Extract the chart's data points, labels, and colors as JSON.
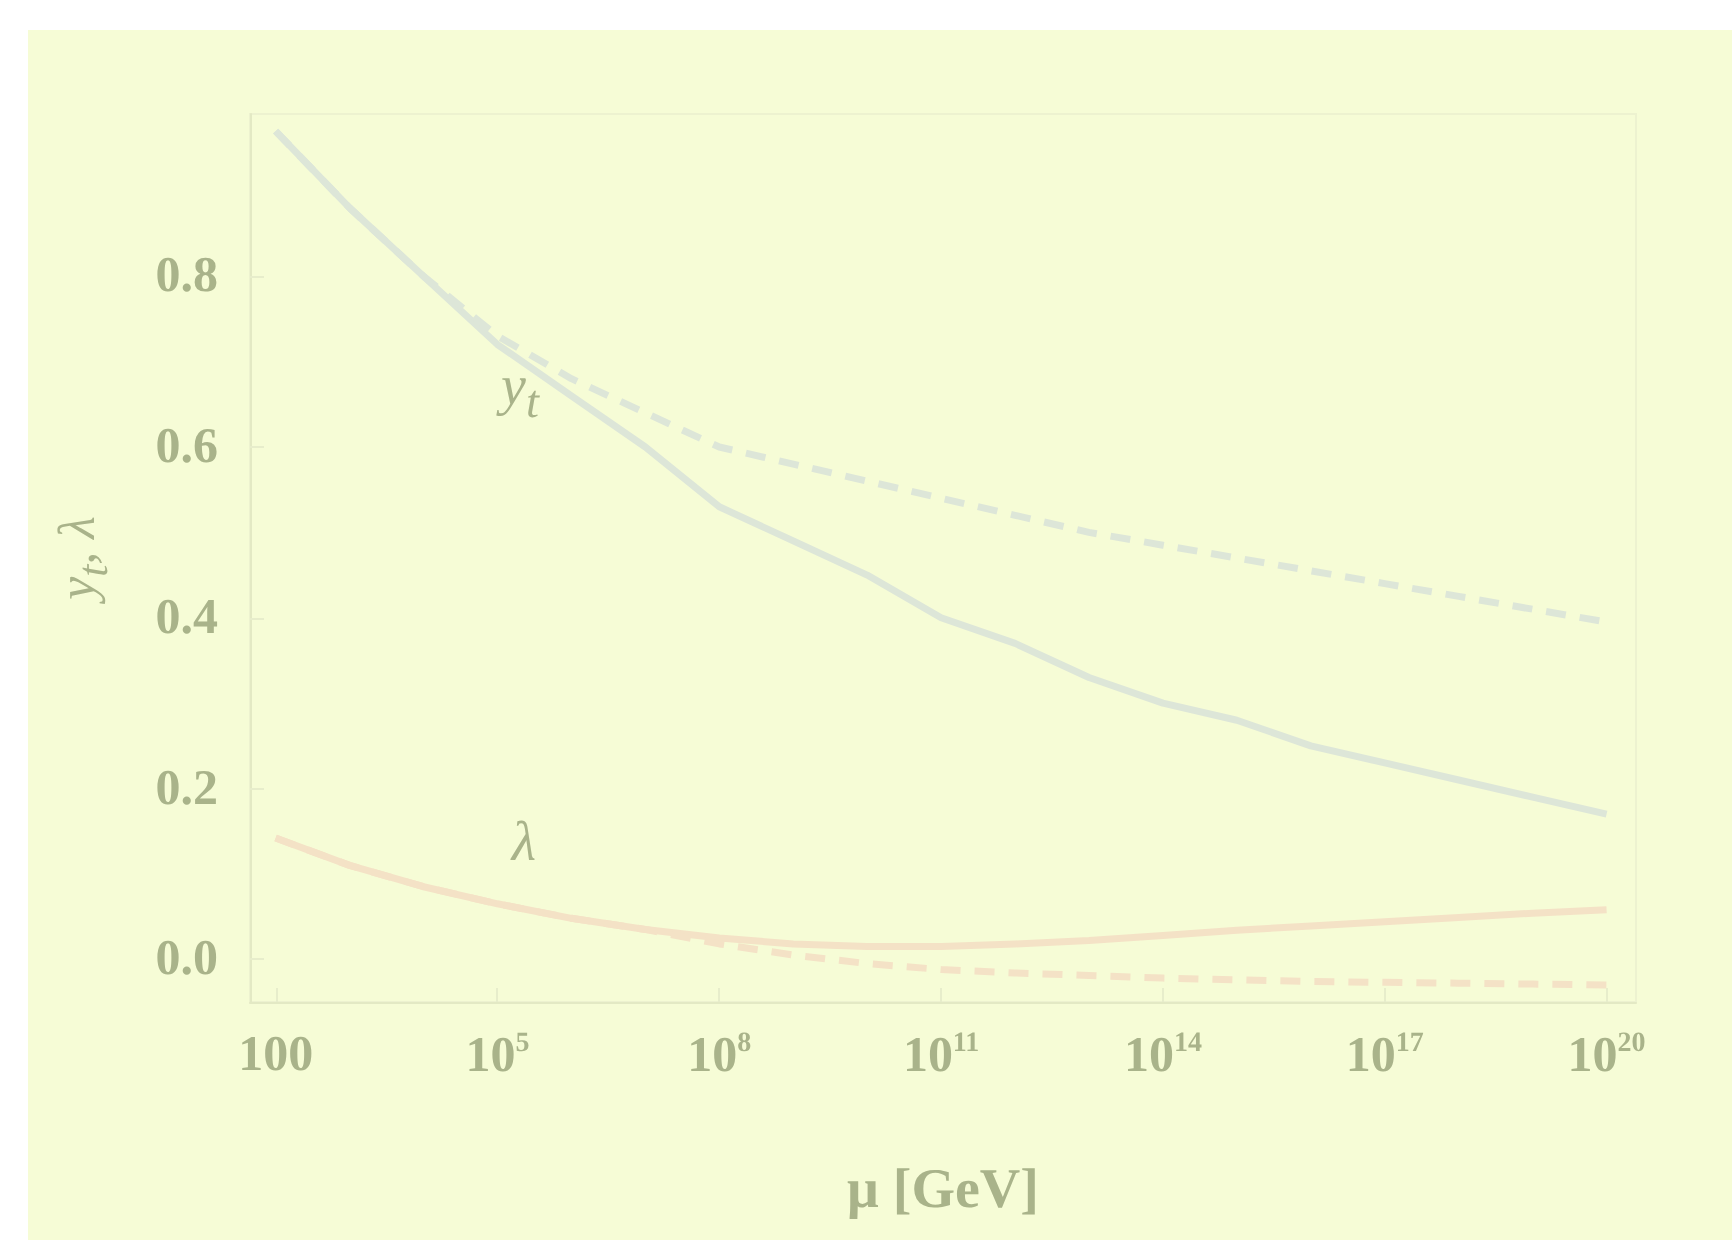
{
  "chart_data": {
    "type": "line",
    "xlabel": "μ [GeV]",
    "ylabel": "y$_{t}$, λ",
    "log": "x",
    "xlim": [
      45,
      2.5e+20
    ],
    "ylim": [
      -0.05,
      0.99
    ],
    "xticks": [
      100,
      {
        "value": 100000.0,
        "label": "10$^{5}$"
      },
      {
        "value": 100000000.0,
        "label": "10$^{8}$"
      },
      {
        "value": 100000000000.0,
        "label": "10$^{11}$"
      },
      {
        "value": 100000000000000.0,
        "label": "10$^{14}$"
      },
      {
        "value": 1e+17,
        "label": "10$^{17}$"
      },
      {
        "value": 1e+20,
        "label": "10$^{20}$"
      }
    ],
    "yticks": [
      {
        "value": 0,
        "label": "0.0"
      },
      0.2,
      0.4,
      0.6,
      0.8
    ],
    "x": [
      100,
      1000.0,
      10000.0,
      100000.0,
      1000000.0,
      10000000.0,
      100000000.0,
      1000000000.0,
      10000000000.0,
      100000000000.0,
      1000000000000.0,
      10000000000000.0,
      100000000000000.0,
      1000000000000000.0,
      1e+16,
      1e+17,
      1e+18,
      1e+19,
      1e+20
    ],
    "series": [
      {
        "color": "#dde6d8",
        "line_style": "solid",
        "values": [
          0.97,
          0.88,
          0.8,
          0.72,
          0.66,
          0.6,
          0.53,
          0.49,
          0.45,
          0.4,
          0.37,
          0.33,
          0.3,
          0.28,
          0.25,
          0.23,
          0.21,
          0.19,
          0.17
        ]
      },
      {
        "color": "#dde6d8",
        "line_style": "dashed",
        "values": [
          0.97,
          0.88,
          0.8,
          0.73,
          0.68,
          0.64,
          0.6,
          0.58,
          0.56,
          0.54,
          0.52,
          0.5,
          0.485,
          0.47,
          0.455,
          0.44,
          0.425,
          0.41,
          0.395
        ]
      },
      {
        "color": "#f4e2c6",
        "line_style": "solid",
        "values": [
          0.142,
          0.11,
          0.085,
          0.065,
          0.048,
          0.035,
          0.025,
          0.018,
          0.015,
          0.015,
          0.018,
          0.022,
          0.028,
          0.034,
          0.039,
          0.044,
          0.049,
          0.054,
          0.058
        ]
      },
      {
        "color": "#f4e2c6",
        "line_style": "dashed",
        "values": [
          0.142,
          0.11,
          0.085,
          0.065,
          0.048,
          0.035,
          0.018,
          0.005,
          -0.005,
          -0.012,
          -0.016,
          -0.019,
          -0.022,
          -0.024,
          -0.026,
          -0.027,
          -0.028,
          -0.029,
          -0.03
        ]
      }
    ],
    "annotations": [
      "y$_{t}$",
      "λ"
    ],
    "marker": "none",
    "grid": false
  }
}
